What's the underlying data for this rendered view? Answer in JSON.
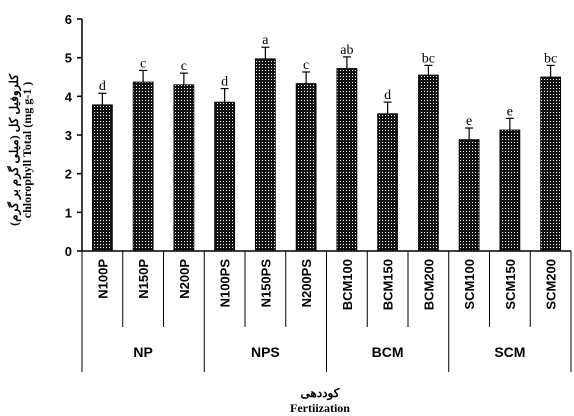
{
  "chart_data": {
    "type": "bar",
    "ylim": [
      0,
      6
    ],
    "yticks": [
      0,
      1,
      2,
      3,
      4,
      5,
      6
    ],
    "ylabel_line1": "کلروفیل کل (میلی گرم بر گرم)",
    "ylabel_line2": "chlorophyll Total (mg g-1 )",
    "xlabel_line1": "کوددهی",
    "xlabel_line2": "Fertiization",
    "groups": [
      {
        "name": "NP",
        "categories": [
          "N100P",
          "N150P",
          "N200P"
        ]
      },
      {
        "name": "NPS",
        "categories": [
          "N100PS",
          "N150PS",
          "N200PS"
        ]
      },
      {
        "name": "BCM",
        "categories": [
          "BCM100",
          "BCM150",
          "BCM200"
        ]
      },
      {
        "name": "SCM",
        "categories": [
          "SCM100",
          "SCM150",
          "SCM200"
        ]
      }
    ],
    "categories": [
      "N100P",
      "N150P",
      "N200P",
      "N100PS",
      "N150PS",
      "N200PS",
      "BCM100",
      "BCM150",
      "BCM200",
      "SCM100",
      "SCM150",
      "SCM200"
    ],
    "values": [
      3.78,
      4.37,
      4.3,
      3.85,
      4.97,
      4.33,
      4.72,
      3.55,
      4.55,
      2.88,
      3.13,
      4.5
    ],
    "errors": [
      0.3,
      0.3,
      0.3,
      0.35,
      0.3,
      0.3,
      0.3,
      0.3,
      0.25,
      0.3,
      0.3,
      0.3
    ],
    "significance": [
      "d",
      "c",
      "c",
      "d",
      "a",
      "c",
      "ab",
      "d",
      "bc",
      "e",
      "e",
      "bc"
    ],
    "bar_pattern": "dotted",
    "grid": false
  }
}
